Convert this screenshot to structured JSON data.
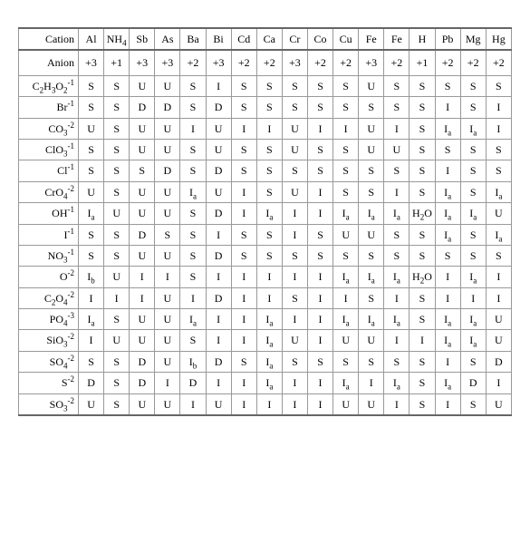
{
  "header": {
    "cation_label": "Cation",
    "anion_label": "Anion",
    "cations": [
      {
        "name": "Al",
        "charge": "+3"
      },
      {
        "name": "NH<sub>4</sub>",
        "charge": "+1"
      },
      {
        "name": "Sb",
        "charge": "+3"
      },
      {
        "name": "As",
        "charge": "+3"
      },
      {
        "name": "Ba",
        "charge": "+2"
      },
      {
        "name": "Bi",
        "charge": "+3"
      },
      {
        "name": "Cd",
        "charge": "+2"
      },
      {
        "name": "Ca",
        "charge": "+2"
      },
      {
        "name": "Cr",
        "charge": "+3"
      },
      {
        "name": "Co",
        "charge": "+2"
      },
      {
        "name": "Cu",
        "charge": "+2"
      },
      {
        "name": "Fe",
        "charge": "+3"
      },
      {
        "name": "Fe",
        "charge": "+2"
      },
      {
        "name": "H",
        "charge": "+1"
      },
      {
        "name": "Pb",
        "charge": "+2"
      },
      {
        "name": "Mg",
        "charge": "+2"
      },
      {
        "name": "Hg",
        "charge": "+2"
      }
    ]
  },
  "rows": [
    {
      "anion": "C<sub>2</sub>H<sub>3</sub>O<sub>2</sub><sup>-1</sup>",
      "v": [
        "S",
        "S",
        "U",
        "U",
        "S",
        "I",
        "S",
        "S",
        "S",
        "S",
        "S",
        "U",
        "S",
        "S",
        "S",
        "S",
        "S"
      ]
    },
    {
      "anion": "Br<sup>-1</sup>",
      "v": [
        "S",
        "S",
        "D",
        "D",
        "S",
        "D",
        "S",
        "S",
        "S",
        "S",
        "S",
        "S",
        "S",
        "S",
        "I",
        "S",
        "I"
      ]
    },
    {
      "anion": "CO<sub>3</sub><sup>-2</sup>",
      "v": [
        "U",
        "S",
        "U",
        "U",
        "I",
        "U",
        "I",
        "I",
        "U",
        "I",
        "I",
        "U",
        "I",
        "S",
        "I<sub>a</sub>",
        "I<sub>a</sub>",
        "I"
      ]
    },
    {
      "anion": "ClO<sub>3</sub><sup>-1</sup>",
      "v": [
        "S",
        "S",
        "U",
        "U",
        "S",
        "U",
        "S",
        "S",
        "U",
        "S",
        "S",
        "U",
        "U",
        "S",
        "S",
        "S",
        "S"
      ]
    },
    {
      "anion": "Cl<sup>-1</sup>",
      "v": [
        "S",
        "S",
        "S",
        "D",
        "S",
        "D",
        "S",
        "S",
        "S",
        "S",
        "S",
        "S",
        "S",
        "S",
        "I",
        "S",
        "S"
      ]
    },
    {
      "anion": "CrO<sub>4</sub><sup>-2</sup>",
      "v": [
        "U",
        "S",
        "U",
        "U",
        "I<sub>a</sub>",
        "U",
        "I",
        "S",
        "U",
        "I",
        "S",
        "S",
        "I",
        "S",
        "I<sub>a</sub>",
        "S",
        "I<sub>a</sub>"
      ]
    },
    {
      "anion": "OH<sup>-1</sup>",
      "v": [
        "I<sub>a</sub>",
        "U",
        "U",
        "U",
        "S",
        "D",
        "I",
        "I<sub>a</sub>",
        "I",
        "I",
        "I<sub>a</sub>",
        "I<sub>a</sub>",
        "I<sub>a</sub>",
        "H<sub>2</sub>O",
        "I<sub>a</sub>",
        "I<sub>a</sub>",
        "U"
      ]
    },
    {
      "anion": "I<sup>-1</sup>",
      "v": [
        "S",
        "S",
        "D",
        "S",
        "S",
        "I",
        "S",
        "S",
        "I",
        "S",
        "U",
        "U",
        "S",
        "S",
        "I<sub>a</sub>",
        "S",
        "I<sub>a</sub>"
      ]
    },
    {
      "anion": "NO<sub>3</sub><sup>-1</sup>",
      "v": [
        "S",
        "S",
        "U",
        "U",
        "S",
        "D",
        "S",
        "S",
        "S",
        "S",
        "S",
        "S",
        "S",
        "S",
        "S",
        "S",
        "S"
      ]
    },
    {
      "anion": "O<sup>-2</sup>",
      "v": [
        "I<sub>b</sub>",
        "U",
        "I",
        "I",
        "S",
        "I",
        "I",
        "I",
        "I",
        "I",
        "I<sub>a</sub>",
        "I<sub>a</sub>",
        "I<sub>a</sub>",
        "H<sub>2</sub>O",
        "I",
        "I<sub>a</sub>",
        "I"
      ]
    },
    {
      "anion": "C<sub>2</sub>O<sub>4</sub><sup>-2</sup>",
      "v": [
        "I",
        "I",
        "I",
        "U",
        "I",
        "D",
        "I",
        "I",
        "S",
        "I",
        "I",
        "S",
        "I",
        "S",
        "I",
        "I",
        "I"
      ]
    },
    {
      "anion": "PO<sub>4</sub><sup>-3</sup>",
      "v": [
        "I<sub>a</sub>",
        "S",
        "U",
        "U",
        "I<sub>a</sub>",
        "I",
        "I",
        "I<sub>a</sub>",
        "I",
        "I",
        "I<sub>a</sub>",
        "I<sub>a</sub>",
        "I<sub>a</sub>",
        "S",
        "I<sub>a</sub>",
        "I<sub>a</sub>",
        "U"
      ]
    },
    {
      "anion": "SiO<sub>3</sub><sup>-2</sup>",
      "v": [
        "I",
        "U",
        "U",
        "U",
        "S",
        "I",
        "I",
        "I<sub>a</sub>",
        "U",
        "I",
        "U",
        "U",
        "I",
        "I",
        "I<sub>a</sub>",
        "I<sub>a</sub>",
        "U"
      ]
    },
    {
      "anion": "SO<sub>4</sub><sup>-2</sup>",
      "v": [
        "S",
        "S",
        "D",
        "U",
        "I<sub>b</sub>",
        "D",
        "S",
        "I<sub>a</sub>",
        "S",
        "S",
        "S",
        "S",
        "S",
        "S",
        "I",
        "S",
        "D"
      ]
    },
    {
      "anion": "S<sup>-2</sup>",
      "v": [
        "D",
        "S",
        "D",
        "I",
        "D",
        "I",
        "I",
        "I<sub>a</sub>",
        "I",
        "I",
        "I<sub>a</sub>",
        "I",
        "I<sub>a</sub>",
        "S",
        "I<sub>a</sub>",
        "D",
        "I"
      ]
    },
    {
      "anion": "SO<sub>3</sub><sup>-2</sup>",
      "v": [
        "U",
        "S",
        "U",
        "U",
        "I",
        "U",
        "I",
        "I",
        "I",
        "I",
        "U",
        "U",
        "I",
        "S",
        "I",
        "S",
        "U"
      ]
    }
  ]
}
